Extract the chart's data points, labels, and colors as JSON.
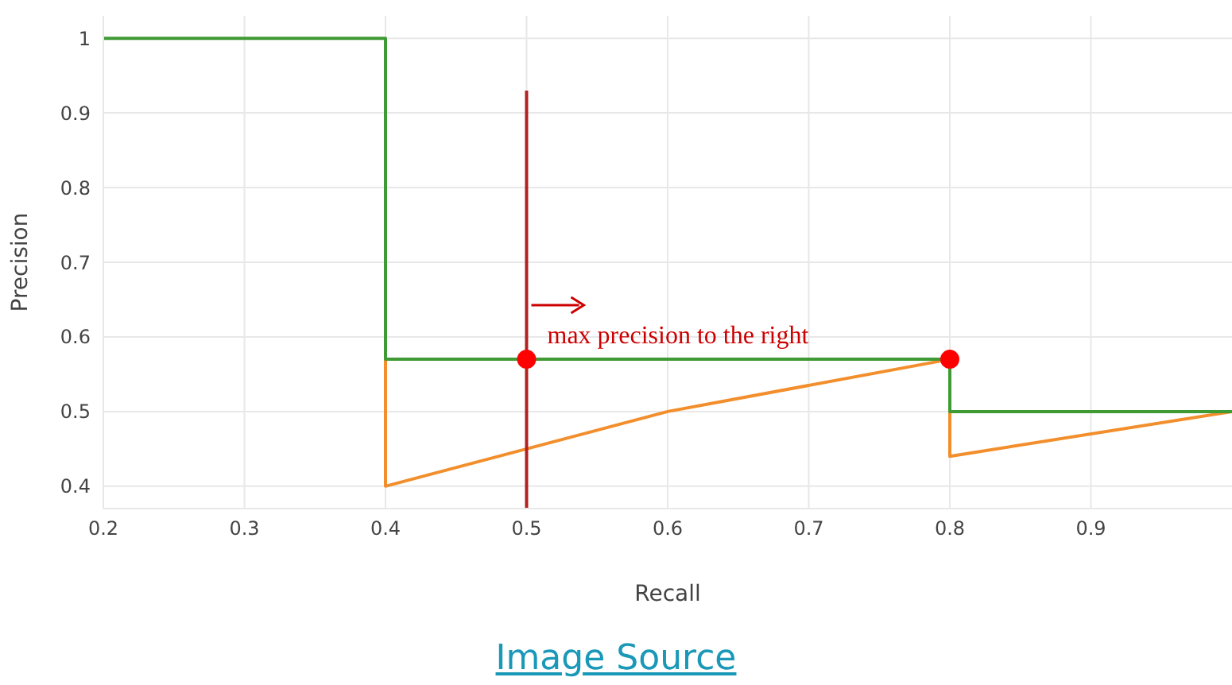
{
  "chart_data": {
    "type": "line",
    "xlabel": "Recall",
    "ylabel": "Precision",
    "xlim": [
      0.2,
      1
    ],
    "xticks": [
      0.2,
      0.3,
      0.4,
      0.5,
      0.6,
      0.7,
      0.8,
      0.9
    ],
    "ylim": [
      0.37,
      1.03
    ],
    "yticks": [
      0.4,
      0.5,
      0.6,
      0.7,
      0.8,
      0.9,
      1
    ],
    "grid": true,
    "legend": false,
    "line_style": "solid",
    "series": [
      {
        "color": "#f28e2b",
        "x": [
          0.4,
          0.4,
          0.6,
          0.8,
          0.8,
          1.0
        ],
        "values": [
          0.57,
          0.4,
          0.5,
          0.57,
          0.44,
          0.5
        ]
      },
      {
        "color": "#3f9a33",
        "x": [
          0.2,
          0.4,
          0.4,
          0.8,
          0.8,
          1.0
        ],
        "values": [
          1,
          1,
          0.57,
          0.57,
          0.5,
          0.5
        ]
      },
      {
        "color": "#b22222",
        "x": [
          0.5,
          0.5
        ],
        "values": [
          0.37,
          0.93
        ]
      },
      {
        "type": "scatter",
        "color": "#ff0000",
        "x": [
          0.5,
          0.8
        ],
        "values": [
          0.57,
          0.57
        ]
      }
    ],
    "annotations": [
      {
        "text": "max precision to the right",
        "x": 0.5,
        "y": 0.6
      },
      "Image Source"
    ]
  }
}
